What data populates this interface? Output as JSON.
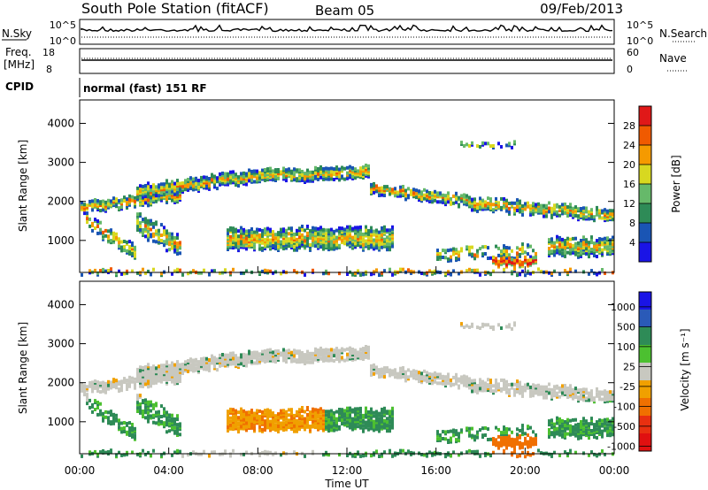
{
  "header": {
    "station": "South Pole Station (fitACF)",
    "beam": "Beam 05",
    "date": "09/Feb/2013"
  },
  "strips": {
    "nsky_label": "N.Sky",
    "nsky_ticks": [
      "10^5",
      "10^0"
    ],
    "nsearch_label": "N.Search",
    "freq_label_1": "Freq.",
    "freq_label_2": "[MHz]",
    "freq_ticks": [
      "18",
      "8"
    ],
    "nave_label": "Nave",
    "nave_ticks": [
      "60",
      "0"
    ],
    "cpid_label": "CPID",
    "cpid_value": "normal (fast) 151 RF"
  },
  "chart_data": [
    {
      "type": "heatmap",
      "variable": "Power",
      "ylabel": "Slant Range [km]",
      "ylim": [
        180,
        4600
      ],
      "yticks": [
        "1000",
        "2000",
        "3000",
        "4000"
      ],
      "xlim": [
        "00:00",
        "24:00"
      ],
      "colorbar_label": "Power [dB]",
      "colorbar_ticks": [
        "4",
        "8",
        "12",
        "16",
        "20",
        "24",
        "28"
      ],
      "colorbar_colors": [
        "#1a14e6",
        "#1a55b4",
        "#2e8b57",
        "#66b96a",
        "#d8d820",
        "#f59a00",
        "#f05a00",
        "#e01818"
      ]
    },
    {
      "type": "heatmap",
      "variable": "Velocity",
      "ylabel": "Slant Range [km]",
      "ylim": [
        180,
        4600
      ],
      "yticks": [
        "1000",
        "2000",
        "3000",
        "4000"
      ],
      "xlabel": "Time UT",
      "xticks": [
        "00:00",
        "04:00",
        "08:00",
        "12:00",
        "16:00",
        "20:00",
        "00:00"
      ],
      "colorbar_label": "Velocity [m s⁻¹]",
      "colorbar_ticks": [
        "1000",
        "500",
        "100",
        "25",
        "-25",
        "-100",
        "-500",
        "-1000"
      ],
      "colorbar_colors": [
        "#1a14e6",
        "#2a5ab8",
        "#2e8b57",
        "#4cc030",
        "#c8c8c0",
        "#f0a000",
        "#f07000",
        "#e83010",
        "#e01010"
      ]
    }
  ]
}
